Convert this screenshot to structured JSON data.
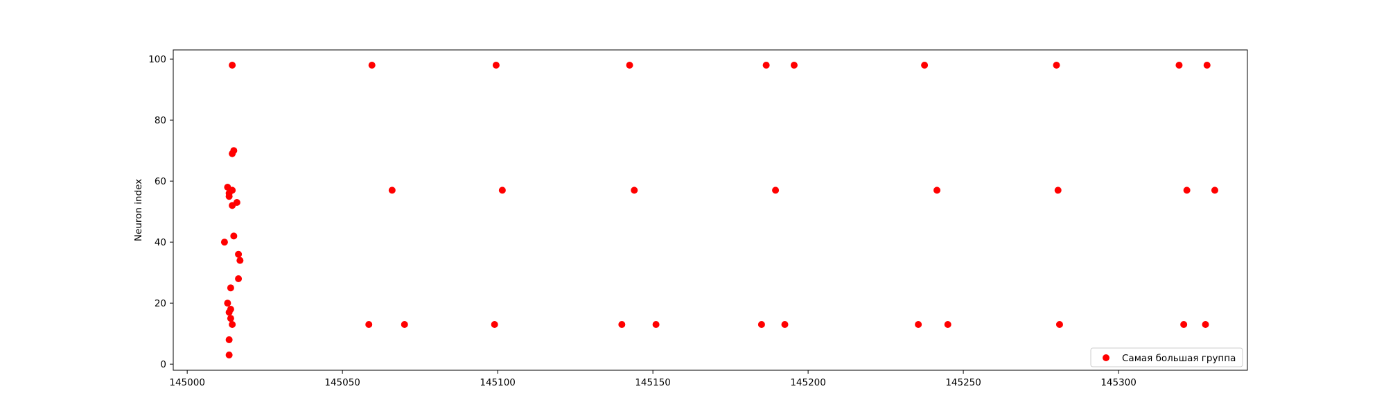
{
  "chart_data": {
    "type": "scatter",
    "title": "",
    "xlabel": "",
    "ylabel": "Neuron index",
    "xlim": [
      144995.5,
      145341.5
    ],
    "ylim": [
      -2,
      103
    ],
    "xticks": [
      145000,
      145050,
      145100,
      145150,
      145200,
      145250,
      145300
    ],
    "yticks": [
      0,
      20,
      40,
      60,
      80,
      100
    ],
    "grid": false,
    "legend_position": "lower-right",
    "series": [
      {
        "name": "Самая большая группа",
        "color": "#ff0000",
        "points": [
          {
            "x": 145014.5,
            "y": 98
          },
          {
            "x": 145059.5,
            "y": 98
          },
          {
            "x": 145099.5,
            "y": 98
          },
          {
            "x": 145142.5,
            "y": 98
          },
          {
            "x": 145186.5,
            "y": 98
          },
          {
            "x": 145195.5,
            "y": 98
          },
          {
            "x": 145237.5,
            "y": 98
          },
          {
            "x": 145280.0,
            "y": 98
          },
          {
            "x": 145319.5,
            "y": 98
          },
          {
            "x": 145328.5,
            "y": 98
          },
          {
            "x": 145015.0,
            "y": 70
          },
          {
            "x": 145014.5,
            "y": 69
          },
          {
            "x": 145013.0,
            "y": 58
          },
          {
            "x": 145014.5,
            "y": 57
          },
          {
            "x": 145013.5,
            "y": 56
          },
          {
            "x": 145013.5,
            "y": 55
          },
          {
            "x": 145016.0,
            "y": 53
          },
          {
            "x": 145014.5,
            "y": 52
          },
          {
            "x": 145015.0,
            "y": 42
          },
          {
            "x": 145012.0,
            "y": 40
          },
          {
            "x": 145016.5,
            "y": 36
          },
          {
            "x": 145017.0,
            "y": 34
          },
          {
            "x": 145016.5,
            "y": 28
          },
          {
            "x": 145014.0,
            "y": 25
          },
          {
            "x": 145013.0,
            "y": 20
          },
          {
            "x": 145014.0,
            "y": 18
          },
          {
            "x": 145013.5,
            "y": 17
          },
          {
            "x": 145014.0,
            "y": 15
          },
          {
            "x": 145014.5,
            "y": 13
          },
          {
            "x": 145013.5,
            "y": 8
          },
          {
            "x": 145013.5,
            "y": 3
          },
          {
            "x": 145066.0,
            "y": 57
          },
          {
            "x": 145101.5,
            "y": 57
          },
          {
            "x": 145144.0,
            "y": 57
          },
          {
            "x": 145189.5,
            "y": 57
          },
          {
            "x": 145241.5,
            "y": 57
          },
          {
            "x": 145280.5,
            "y": 57
          },
          {
            "x": 145322.0,
            "y": 57
          },
          {
            "x": 145331.0,
            "y": 57
          },
          {
            "x": 145058.5,
            "y": 13
          },
          {
            "x": 145070.0,
            "y": 13
          },
          {
            "x": 145099.0,
            "y": 13
          },
          {
            "x": 145140.0,
            "y": 13
          },
          {
            "x": 145151.0,
            "y": 13
          },
          {
            "x": 145185.0,
            "y": 13
          },
          {
            "x": 145192.5,
            "y": 13
          },
          {
            "x": 145235.5,
            "y": 13
          },
          {
            "x": 145245.0,
            "y": 13
          },
          {
            "x": 145281.0,
            "y": 13
          },
          {
            "x": 145321.0,
            "y": 13
          },
          {
            "x": 145328.0,
            "y": 13
          }
        ]
      }
    ]
  }
}
